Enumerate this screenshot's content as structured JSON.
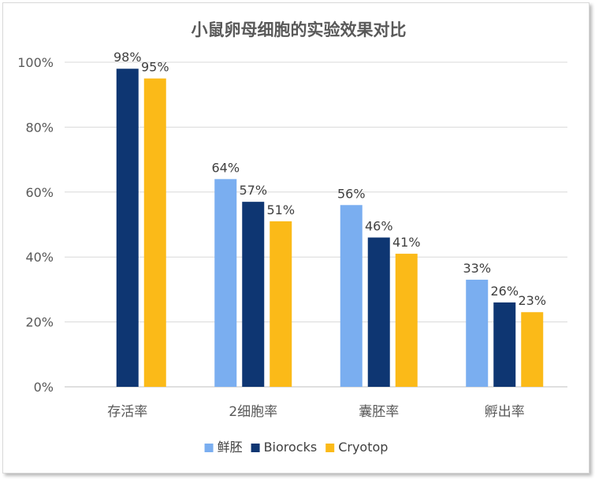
{
  "chart_data": {
    "type": "bar",
    "title": "小鼠卵母细胞的实验效果对比",
    "categories": [
      "存活率",
      "2细胞率",
      "囊胚率",
      "孵出率"
    ],
    "series": [
      {
        "name": "鲜胚",
        "color": "#7aaef0",
        "values": [
          null,
          64,
          56,
          33
        ]
      },
      {
        "name": "Biorocks",
        "color": "#0e3672",
        "values": [
          98,
          57,
          46,
          26
        ]
      },
      {
        "name": "Cryotop",
        "color": "#fbba18",
        "values": [
          95,
          51,
          41,
          23
        ]
      }
    ],
    "ylim": [
      0,
      100
    ],
    "yticks": [
      0,
      20,
      40,
      60,
      80,
      100
    ],
    "ytick_labels": [
      "0%",
      "20%",
      "40%",
      "60%",
      "80%",
      "100%"
    ],
    "value_suffix": "%",
    "xlabel": "",
    "ylabel": "",
    "grid": true,
    "legend": "bottom"
  }
}
